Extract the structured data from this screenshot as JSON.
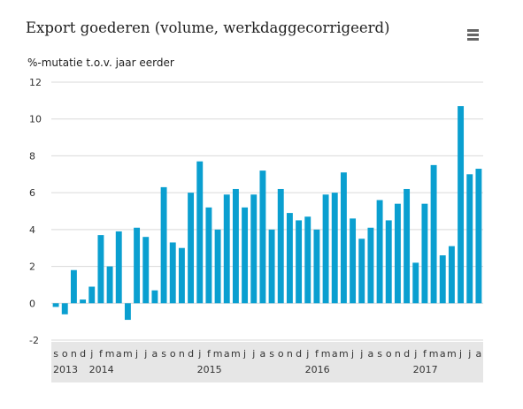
{
  "header": {
    "title": "Export goederen (volume, werkdaggecorrigeerd)"
  },
  "icons": {
    "menu": "hamburger-menu-icon"
  },
  "chart_data": {
    "type": "bar",
    "title": "Export goederen (volume, werkdaggecorrigeerd)",
    "xlabel": "",
    "ylabel": "%-mutatie t.o.v. jaar eerder",
    "ylim": [
      -2,
      12
    ],
    "yticks": [
      -2,
      0,
      2,
      4,
      6,
      8,
      10,
      12
    ],
    "grid": true,
    "legend": "none",
    "bar_color": "#0a9fd0",
    "categories": [
      "s",
      "o",
      "n",
      "d",
      "j",
      "f",
      "m",
      "a",
      "m",
      "j",
      "j",
      "a",
      "s",
      "o",
      "n",
      "d",
      "j",
      "f",
      "m",
      "a",
      "m",
      "j",
      "j",
      "a",
      "s",
      "o",
      "n",
      "d",
      "j",
      "f",
      "m",
      "a",
      "m",
      "j",
      "j",
      "a",
      "s",
      "o",
      "n",
      "d",
      "j",
      "f",
      "m",
      "a",
      "m",
      "j",
      "j",
      "a"
    ],
    "values": [
      -0.2,
      -0.6,
      1.8,
      0.2,
      0.9,
      3.7,
      2.0,
      3.9,
      -0.9,
      4.1,
      3.6,
      0.7,
      6.3,
      3.3,
      3.0,
      6.0,
      7.7,
      5.2,
      4.0,
      5.9,
      6.2,
      5.2,
      5.9,
      7.2,
      4.0,
      6.2,
      4.9,
      4.5,
      4.7,
      4.0,
      5.9,
      6.0,
      7.1,
      4.6,
      3.5,
      4.1,
      5.6,
      4.5,
      5.4,
      6.2,
      2.2,
      5.4,
      7.5,
      2.6,
      3.1,
      10.7,
      7.0,
      7.3
    ],
    "years": [
      {
        "label": "2013",
        "start_index": 0
      },
      {
        "label": "2014",
        "start_index": 4
      },
      {
        "label": "2015",
        "start_index": 16
      },
      {
        "label": "2016",
        "start_index": 28
      },
      {
        "label": "2017",
        "start_index": 40
      }
    ]
  }
}
